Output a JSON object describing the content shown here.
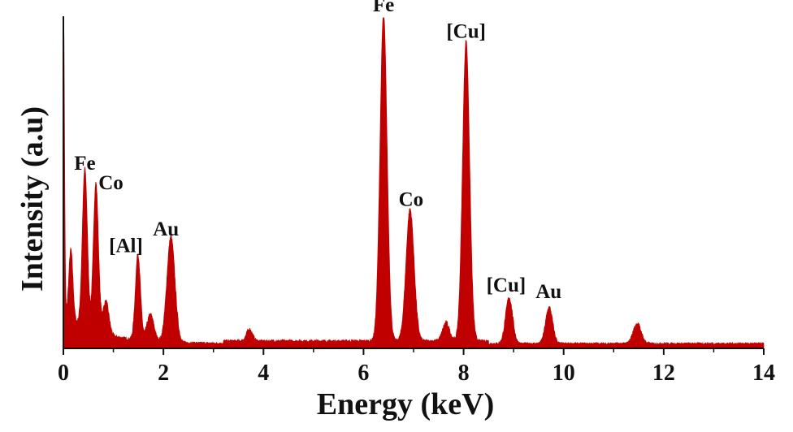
{
  "chart_data": {
    "type": "area",
    "xlabel": "Energy (keV)",
    "ylabel": "Intensity (a.u)",
    "xlim": [
      0,
      14
    ],
    "ylim": [
      0,
      100
    ],
    "x_ticks": [
      "0",
      "2",
      "4",
      "6",
      "8",
      "10",
      "12",
      "14"
    ],
    "grid": false,
    "series_color": "#C00000",
    "baseline": 1.2,
    "peaks": [
      {
        "x": 0.0,
        "height": 100,
        "width": 0.02
      },
      {
        "x": 0.15,
        "height": 21,
        "width": 0.04
      },
      {
        "x": 0.43,
        "height": 48,
        "width": 0.05
      },
      {
        "x": 0.65,
        "height": 45,
        "width": 0.05
      },
      {
        "x": 0.85,
        "height": 10,
        "width": 0.06
      },
      {
        "x": 1.49,
        "height": 26,
        "width": 0.05
      },
      {
        "x": 1.74,
        "height": 8,
        "width": 0.07
      },
      {
        "x": 2.15,
        "height": 32,
        "width": 0.08
      },
      {
        "x": 3.72,
        "height": 3.5,
        "width": 0.06
      },
      {
        "x": 6.4,
        "height": 99,
        "width": 0.07
      },
      {
        "x": 6.93,
        "height": 40,
        "width": 0.08
      },
      {
        "x": 7.65,
        "height": 5.5,
        "width": 0.07
      },
      {
        "x": 8.05,
        "height": 91,
        "width": 0.07
      },
      {
        "x": 8.91,
        "height": 14,
        "width": 0.07
      },
      {
        "x": 9.71,
        "height": 11,
        "width": 0.07
      },
      {
        "x": 11.47,
        "height": 6,
        "width": 0.08
      }
    ],
    "annotations": [
      {
        "text": "Fe",
        "x": 0.43,
        "y": 54
      },
      {
        "text": "Co",
        "x": 0.95,
        "y": 48
      },
      {
        "text": "[Al]",
        "x": 1.25,
        "y": 29
      },
      {
        "text": "Au",
        "x": 2.05,
        "y": 34
      },
      {
        "text": "Fe",
        "x": 6.4,
        "y": 102
      },
      {
        "text": "Co",
        "x": 6.95,
        "y": 43
      },
      {
        "text": "[Cu]",
        "x": 8.05,
        "y": 94
      },
      {
        "text": "[Cu]",
        "x": 8.85,
        "y": 17
      },
      {
        "text": "Au",
        "x": 9.7,
        "y": 15
      }
    ]
  }
}
